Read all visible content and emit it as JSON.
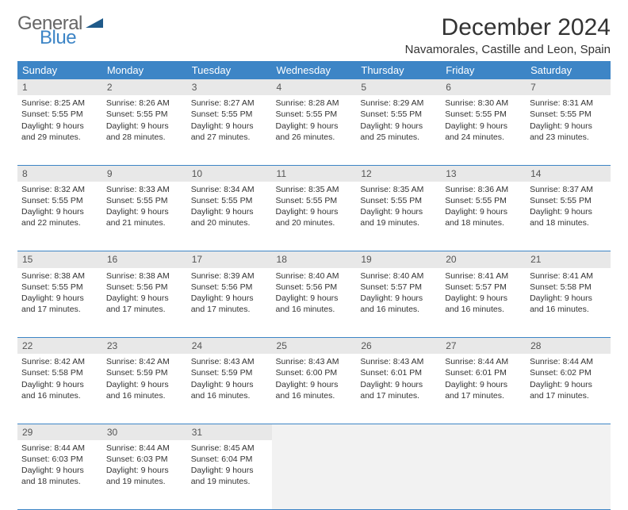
{
  "logo": {
    "word1": "General",
    "word2": "Blue",
    "tri_color": "#1f5a8a"
  },
  "title": "December 2024",
  "location": "Navamorales, Castille and Leon, Spain",
  "header_bg": "#3d85c6",
  "daynum_bg": "#e8e8e8",
  "days": [
    "Sunday",
    "Monday",
    "Tuesday",
    "Wednesday",
    "Thursday",
    "Friday",
    "Saturday"
  ],
  "weeks": [
    [
      {
        "n": "1",
        "sr": "8:25 AM",
        "ss": "5:55 PM",
        "dl": "9 hours and 29 minutes."
      },
      {
        "n": "2",
        "sr": "8:26 AM",
        "ss": "5:55 PM",
        "dl": "9 hours and 28 minutes."
      },
      {
        "n": "3",
        "sr": "8:27 AM",
        "ss": "5:55 PM",
        "dl": "9 hours and 27 minutes."
      },
      {
        "n": "4",
        "sr": "8:28 AM",
        "ss": "5:55 PM",
        "dl": "9 hours and 26 minutes."
      },
      {
        "n": "5",
        "sr": "8:29 AM",
        "ss": "5:55 PM",
        "dl": "9 hours and 25 minutes."
      },
      {
        "n": "6",
        "sr": "8:30 AM",
        "ss": "5:55 PM",
        "dl": "9 hours and 24 minutes."
      },
      {
        "n": "7",
        "sr": "8:31 AM",
        "ss": "5:55 PM",
        "dl": "9 hours and 23 minutes."
      }
    ],
    [
      {
        "n": "8",
        "sr": "8:32 AM",
        "ss": "5:55 PM",
        "dl": "9 hours and 22 minutes."
      },
      {
        "n": "9",
        "sr": "8:33 AM",
        "ss": "5:55 PM",
        "dl": "9 hours and 21 minutes."
      },
      {
        "n": "10",
        "sr": "8:34 AM",
        "ss": "5:55 PM",
        "dl": "9 hours and 20 minutes."
      },
      {
        "n": "11",
        "sr": "8:35 AM",
        "ss": "5:55 PM",
        "dl": "9 hours and 20 minutes."
      },
      {
        "n": "12",
        "sr": "8:35 AM",
        "ss": "5:55 PM",
        "dl": "9 hours and 19 minutes."
      },
      {
        "n": "13",
        "sr": "8:36 AM",
        "ss": "5:55 PM",
        "dl": "9 hours and 18 minutes."
      },
      {
        "n": "14",
        "sr": "8:37 AM",
        "ss": "5:55 PM",
        "dl": "9 hours and 18 minutes."
      }
    ],
    [
      {
        "n": "15",
        "sr": "8:38 AM",
        "ss": "5:55 PM",
        "dl": "9 hours and 17 minutes."
      },
      {
        "n": "16",
        "sr": "8:38 AM",
        "ss": "5:56 PM",
        "dl": "9 hours and 17 minutes."
      },
      {
        "n": "17",
        "sr": "8:39 AM",
        "ss": "5:56 PM",
        "dl": "9 hours and 17 minutes."
      },
      {
        "n": "18",
        "sr": "8:40 AM",
        "ss": "5:56 PM",
        "dl": "9 hours and 16 minutes."
      },
      {
        "n": "19",
        "sr": "8:40 AM",
        "ss": "5:57 PM",
        "dl": "9 hours and 16 minutes."
      },
      {
        "n": "20",
        "sr": "8:41 AM",
        "ss": "5:57 PM",
        "dl": "9 hours and 16 minutes."
      },
      {
        "n": "21",
        "sr": "8:41 AM",
        "ss": "5:58 PM",
        "dl": "9 hours and 16 minutes."
      }
    ],
    [
      {
        "n": "22",
        "sr": "8:42 AM",
        "ss": "5:58 PM",
        "dl": "9 hours and 16 minutes."
      },
      {
        "n": "23",
        "sr": "8:42 AM",
        "ss": "5:59 PM",
        "dl": "9 hours and 16 minutes."
      },
      {
        "n": "24",
        "sr": "8:43 AM",
        "ss": "5:59 PM",
        "dl": "9 hours and 16 minutes."
      },
      {
        "n": "25",
        "sr": "8:43 AM",
        "ss": "6:00 PM",
        "dl": "9 hours and 16 minutes."
      },
      {
        "n": "26",
        "sr": "8:43 AM",
        "ss": "6:01 PM",
        "dl": "9 hours and 17 minutes."
      },
      {
        "n": "27",
        "sr": "8:44 AM",
        "ss": "6:01 PM",
        "dl": "9 hours and 17 minutes."
      },
      {
        "n": "28",
        "sr": "8:44 AM",
        "ss": "6:02 PM",
        "dl": "9 hours and 17 minutes."
      }
    ],
    [
      {
        "n": "29",
        "sr": "8:44 AM",
        "ss": "6:03 PM",
        "dl": "9 hours and 18 minutes."
      },
      {
        "n": "30",
        "sr": "8:44 AM",
        "ss": "6:03 PM",
        "dl": "9 hours and 19 minutes."
      },
      {
        "n": "31",
        "sr": "8:45 AM",
        "ss": "6:04 PM",
        "dl": "9 hours and 19 minutes."
      },
      null,
      null,
      null,
      null
    ]
  ],
  "labels": {
    "sunrise": "Sunrise:",
    "sunset": "Sunset:",
    "daylight": "Daylight:"
  }
}
